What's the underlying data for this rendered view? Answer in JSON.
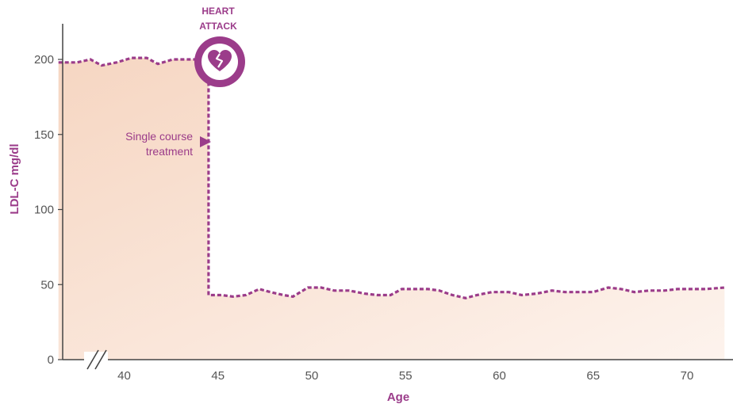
{
  "chart_data": {
    "type": "area",
    "title": "",
    "xlabel": "Age",
    "ylabel": "LDL-C mg/dl",
    "xlim": [
      36.5,
      72
    ],
    "ylim": [
      0,
      220
    ],
    "x_ticks": [
      40,
      45,
      50,
      55,
      60,
      65,
      70
    ],
    "y_ticks": [
      0,
      50,
      100,
      150,
      200
    ],
    "x_axis_break": true,
    "grid": false,
    "legend": "none",
    "series": [
      {
        "x": [
          36.5,
          37.5,
          38.2,
          38.8,
          39.6,
          40.4,
          41.2,
          41.8,
          42.6,
          43.2,
          43.8,
          44.5,
          44.5,
          45.2,
          45.8,
          46.5,
          47.2,
          47.8,
          48.5,
          49.0,
          49.8,
          50.5,
          51.2,
          52.0,
          52.8,
          53.5,
          54.2,
          54.8,
          55.5,
          56.2,
          56.8,
          57.5,
          58.2,
          58.8,
          59.6,
          60.5,
          61.2,
          62.0,
          62.8,
          63.5,
          64.2,
          65.0,
          65.8,
          66.5,
          67.2,
          68.0,
          68.8,
          69.5,
          70.2,
          71.0,
          72.0
        ],
        "values": [
          198,
          198,
          200,
          196,
          198,
          201,
          201,
          197,
          200,
          200,
          200,
          200,
          43,
          43,
          42,
          43,
          47,
          45,
          43,
          42,
          48,
          48,
          46,
          46,
          44,
          43,
          43,
          47,
          47,
          47,
          46,
          43,
          41,
          43,
          45,
          45,
          43,
          44,
          46,
          45,
          45,
          45,
          48,
          47,
          45,
          46,
          46,
          47,
          47,
          47,
          48
        ]
      }
    ],
    "colors": {
      "line": "#9b3c8a",
      "fill_start": "#f6d6c2",
      "fill_end": "#fdf3ed",
      "axis": "#444444",
      "tick_text": "#555555"
    },
    "annotations": [
      {
        "text_lines": [
          "HEART",
          "ATTACK"
        ],
        "x": 44.5,
        "y": 200,
        "icon": "broken-heart-icon"
      },
      {
        "text_lines": [
          "Single course",
          "treatment"
        ],
        "x": 44.5,
        "y": 145,
        "marker": "arrow-right"
      }
    ]
  }
}
